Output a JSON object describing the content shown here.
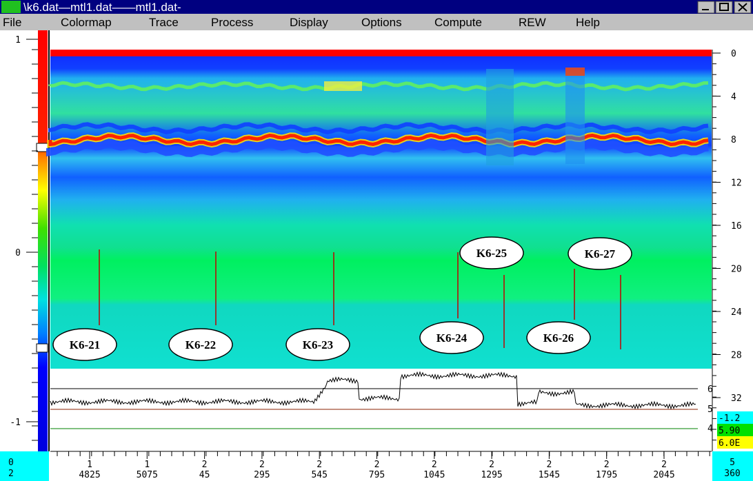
{
  "window": {
    "title": "\\k6.dat—mtl1.dat——mtl1.dat-"
  },
  "menu": [
    "File",
    "Colormap",
    "Trace",
    "Process",
    "Display",
    "Options",
    "Compute",
    "REW",
    "Help"
  ],
  "left_scale": [
    "1",
    "0",
    "-1"
  ],
  "right_scale": [
    "0",
    "4",
    "8",
    "12",
    "16",
    "20",
    "24",
    "28",
    "32"
  ],
  "bottom_scale": [
    {
      "top": "1",
      "bottom": "4825"
    },
    {
      "top": "1",
      "bottom": "5075"
    },
    {
      "top": "2",
      "bottom": "45"
    },
    {
      "top": "2",
      "bottom": "295"
    },
    {
      "top": "2",
      "bottom": "545"
    },
    {
      "top": "2",
      "bottom": "795"
    },
    {
      "top": "2",
      "bottom": "1045"
    },
    {
      "top": "2",
      "bottom": "1295"
    },
    {
      "top": "2",
      "bottom": "1545"
    },
    {
      "top": "2",
      "bottom": "1795"
    },
    {
      "top": "2",
      "bottom": "2045"
    }
  ],
  "corner_left": [
    "0",
    "2"
  ],
  "corner_right": [
    "5",
    "360"
  ],
  "trace_labels": [
    "6",
    "5",
    "4"
  ],
  "readouts": [
    "-1.2",
    "5.90",
    "6.0E"
  ],
  "markers": [
    "K6-21",
    "K6-22",
    "K6-23",
    "K6-24",
    "K6-25",
    "K6-26",
    "K6-27"
  ]
}
